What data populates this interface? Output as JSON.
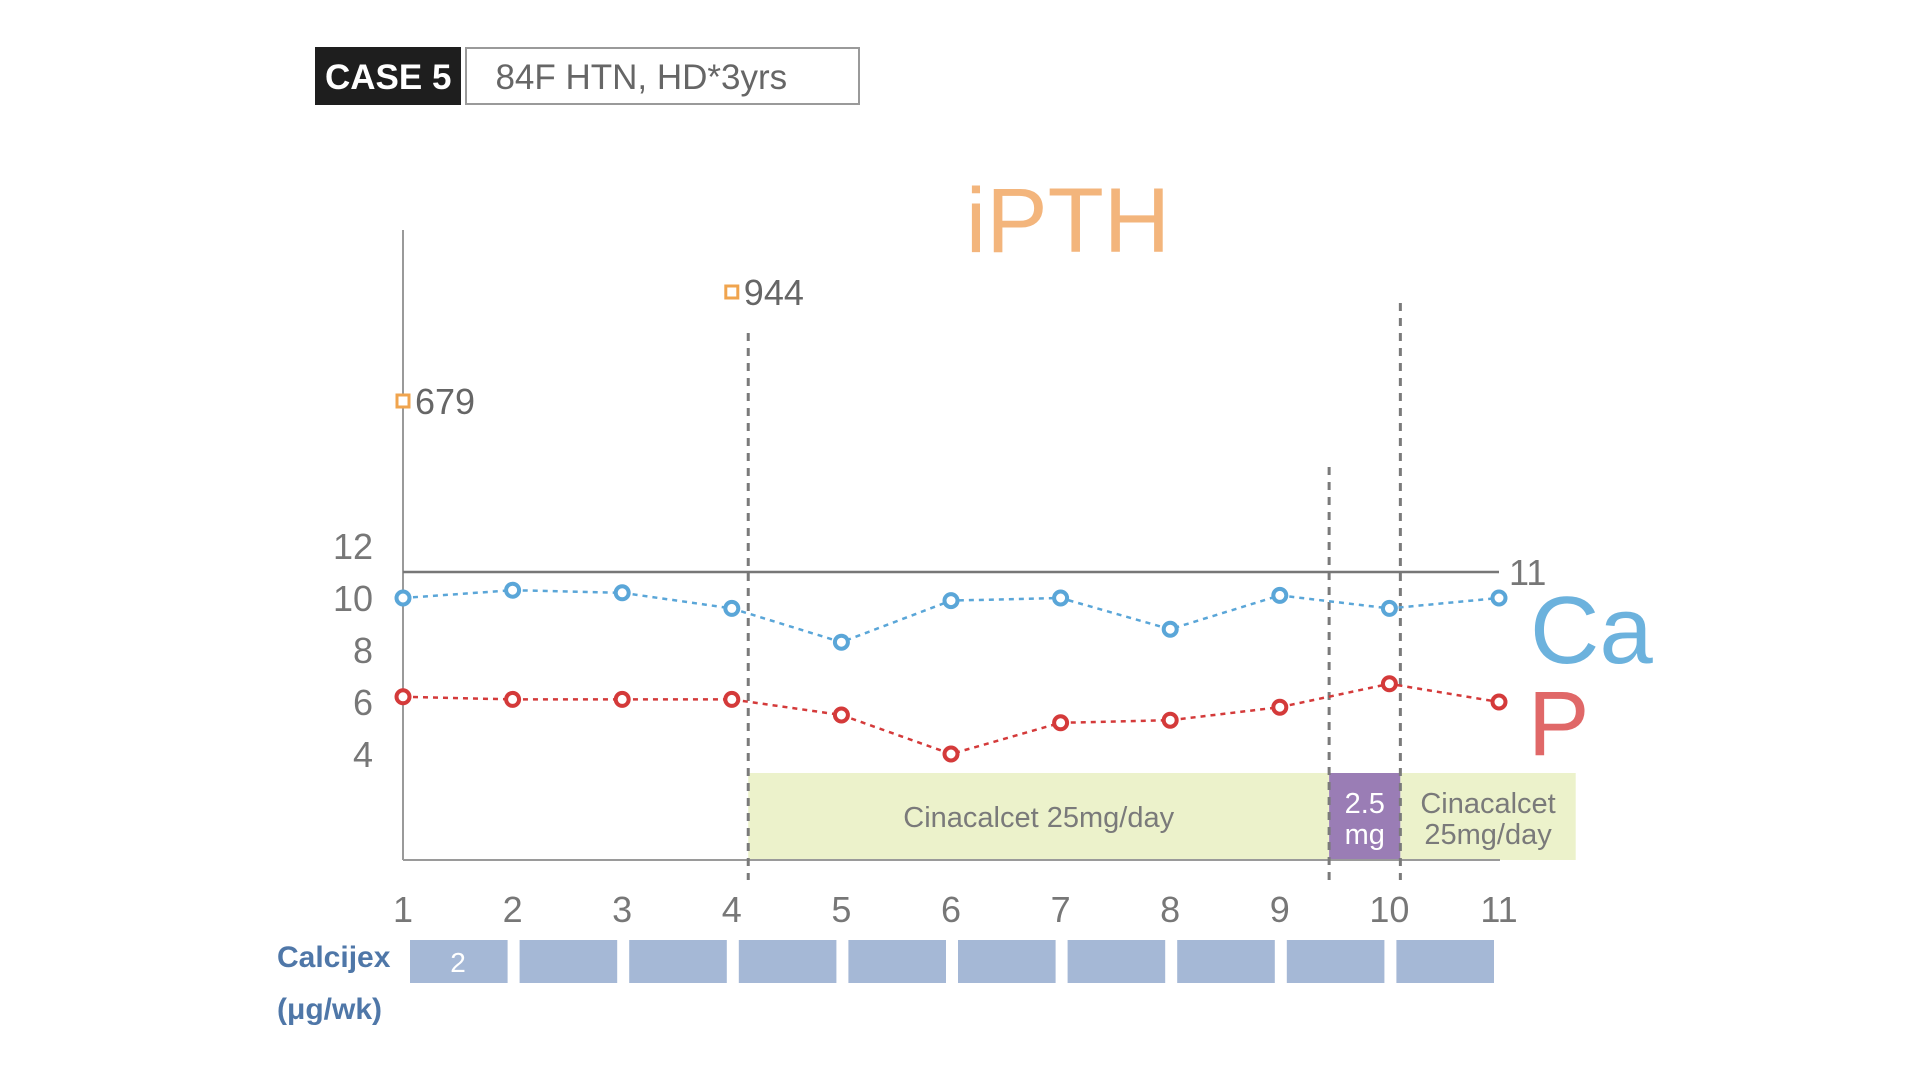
{
  "header": {
    "case_tag": "CASE 5",
    "case_desc": "84F HTN,   HD*3yrs"
  },
  "chart_data": {
    "type": "line",
    "title": "iPTH",
    "x": [
      1,
      2,
      3,
      4,
      5,
      6,
      7,
      8,
      9,
      10,
      11
    ],
    "x_tick_labels": [
      "1",
      "2",
      "3",
      "4",
      "5",
      "6",
      "7",
      "8",
      "9",
      "10",
      "11"
    ],
    "y_tick_labels": [
      "12",
      "10",
      "8",
      "6",
      "4"
    ],
    "y_ticks": [
      12,
      10,
      8,
      6,
      4
    ],
    "ylim": [
      0,
      12
    ],
    "grid": false,
    "reference_line": {
      "value": 11,
      "label": "11",
      "color": "#777777"
    },
    "series": [
      {
        "name": "Ca",
        "color": "#5aa6d8",
        "values": [
          10,
          10.3,
          10.2,
          9.6,
          8.3,
          9.9,
          10,
          8.8,
          10.1,
          9.6,
          10
        ]
      },
      {
        "name": "P",
        "color": "#d43a3a",
        "values": [
          6.2,
          6.1,
          6.1,
          6.1,
          5.5,
          4.0,
          5.2,
          5.3,
          5.8,
          6.7,
          6.0
        ]
      }
    ],
    "ipth": {
      "color": "#f0a44e",
      "points": [
        {
          "x": 1,
          "value": 679,
          "label": "679"
        },
        {
          "x": 4,
          "value": 944,
          "label": "944"
        }
      ]
    },
    "series_label_colors": {
      "Ca": "#6cb2dd",
      "P": "#e06868",
      "title": "#f3b57c"
    },
    "treatments": [
      {
        "label": "Cinacalcet 25mg/day",
        "x_start": 4.15,
        "x_end": 9.45,
        "color": "#ecf2cb",
        "text_color": "#7a7a7a"
      },
      {
        "label_lines": [
          "2.5",
          "mg"
        ],
        "x_start": 9.45,
        "x_end": 10.1,
        "color": "#9a7db5",
        "text_color": "#ffffff"
      },
      {
        "label_lines": [
          "Cinacalcet",
          "25mg/day"
        ],
        "x_start": 10.1,
        "x_end": 11.7,
        "color": "#ecf2cb",
        "text_color": "#7a7a7a"
      }
    ],
    "event_lines": [
      4.15,
      9.45,
      10.1
    ],
    "calcijex": {
      "label_lines": [
        "Calcijex",
        "(μg/wk)"
      ],
      "color": "#a5b8d6",
      "label_color": "#4f77a8",
      "dose_label": "2",
      "segments": [
        1,
        2,
        3,
        4,
        5,
        6,
        7,
        8,
        9,
        10
      ]
    }
  }
}
